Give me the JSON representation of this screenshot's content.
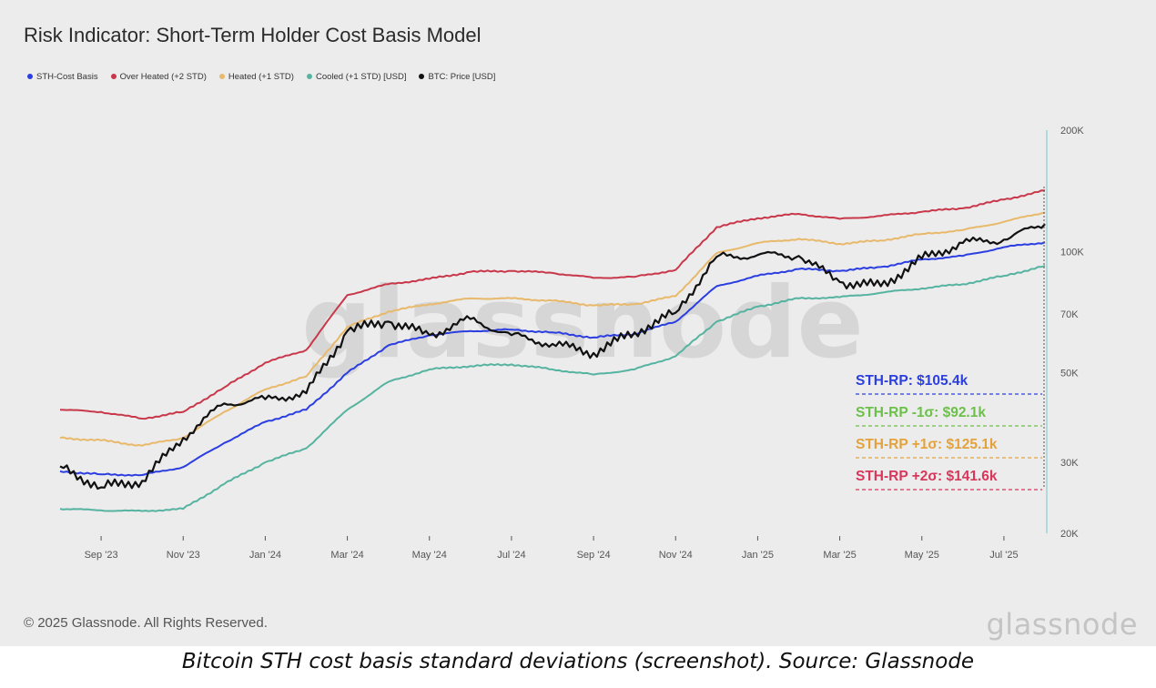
{
  "chart_title": "Risk Indicator: Short-Term Holder Cost Basis Model",
  "copyright": "© 2025 Glassnode. All Rights Reserved.",
  "brand": "glassnode",
  "watermark": "glassnode",
  "caption": "Bitcoin STH cost basis standard deviations (screenshot). Source: Glassnode",
  "legend": [
    {
      "label": "STH-Cost Basis",
      "color": "#2b3ee0"
    },
    {
      "label": "Over Heated (+2 STD)",
      "color": "#c8374a"
    },
    {
      "label": "Heated (+1 STD)",
      "color": "#e8b96a"
    },
    {
      "label": "Cooled (+1 STD) [USD]",
      "color": "#55b3a0"
    },
    {
      "label": "BTC: Price [USD]",
      "color": "#111111"
    }
  ],
  "annotations": [
    {
      "text": "STH-RP: $105.4k",
      "color": "#2b3ee0"
    },
    {
      "text": "STH-RP -1σ: $92.1k",
      "color": "#6cc04a"
    },
    {
      "text": "STH-RP +1σ: $125.1k",
      "color": "#e3a23c"
    },
    {
      "text": "STH-RP +2σ: $141.6k",
      "color": "#d8365a"
    }
  ],
  "chart_data": {
    "type": "line",
    "yscale": "log",
    "ylim": [
      20000,
      200000
    ],
    "y_ticks": [
      {
        "v": 200000,
        "label": "200K"
      },
      {
        "v": 100000,
        "label": "100K"
      },
      {
        "v": 70000,
        "label": "70K"
      },
      {
        "v": 50000,
        "label": "50K"
      },
      {
        "v": 30000,
        "label": "30K"
      },
      {
        "v": 20000,
        "label": "20K"
      }
    ],
    "x_ticks": [
      "Sep '23",
      "Nov '23",
      "Jan '24",
      "Mar '24",
      "May '24",
      "Jul '24",
      "Sep '24",
      "Nov '24",
      "Jan '25",
      "Mar '25",
      "May '25",
      "Jul '25"
    ],
    "x": [
      "Aug '23",
      "Sep '23",
      "Oct '23",
      "Nov '23",
      "Dec '23",
      "Jan '24",
      "Feb '24",
      "Mar '24",
      "Apr '24",
      "May '24",
      "Jun '24",
      "Jul '24",
      "Aug '24",
      "Sep '24",
      "Oct '24",
      "Nov '24",
      "Dec '24",
      "Jan '25",
      "Feb '25",
      "Mar '25",
      "Apr '25",
      "May '25",
      "Jun '25",
      "Jul '25",
      "Aug '25"
    ],
    "series": [
      {
        "name": "STH-Cost Basis",
        "color": "#2b3ee0",
        "values": [
          28500,
          28000,
          27900,
          29200,
          33500,
          37800,
          40500,
          50000,
          58500,
          62000,
          63500,
          64000,
          63000,
          61200,
          62500,
          67000,
          82000,
          87000,
          90500,
          89500,
          91500,
          95500,
          97500,
          102500,
          105400
        ]
      },
      {
        "name": "Over Heated (+2 STD)",
        "color": "#c8374a",
        "values": [
          40500,
          40000,
          38500,
          40000,
          46000,
          53000,
          57000,
          78000,
          83000,
          85500,
          89000,
          89500,
          88500,
          86000,
          86500,
          90000,
          115000,
          121000,
          124000,
          120500,
          122500,
          125500,
          128000,
          134500,
          141600
        ]
      },
      {
        "name": "Heated (+1 STD)",
        "color": "#e8b96a",
        "values": [
          34500,
          34000,
          33000,
          34500,
          40000,
          45500,
          49000,
          65000,
          71000,
          74000,
          76500,
          76500,
          75500,
          73500,
          74000,
          77500,
          99000,
          105000,
          107500,
          104500,
          106500,
          110500,
          113000,
          118500,
          125100
        ]
      },
      {
        "name": "Cooled (+1 STD) [USD]",
        "color": "#55b3a0",
        "values": [
          23000,
          22800,
          22700,
          23000,
          26500,
          30000,
          32500,
          40500,
          47500,
          51000,
          52000,
          52500,
          51000,
          49500,
          51000,
          55000,
          67000,
          73000,
          76500,
          77000,
          79000,
          81000,
          83000,
          87000,
          92100
        ]
      },
      {
        "name": "BTC: Price [USD]",
        "color": "#111111",
        "values": [
          29300,
          26000,
          27000,
          34500,
          42000,
          43000,
          44500,
          63500,
          67000,
          62000,
          68000,
          62000,
          59000,
          56000,
          63000,
          70500,
          97000,
          98000,
          97500,
          84000,
          82000,
          96000,
          105000,
          107000,
          117000
        ]
      }
    ]
  }
}
